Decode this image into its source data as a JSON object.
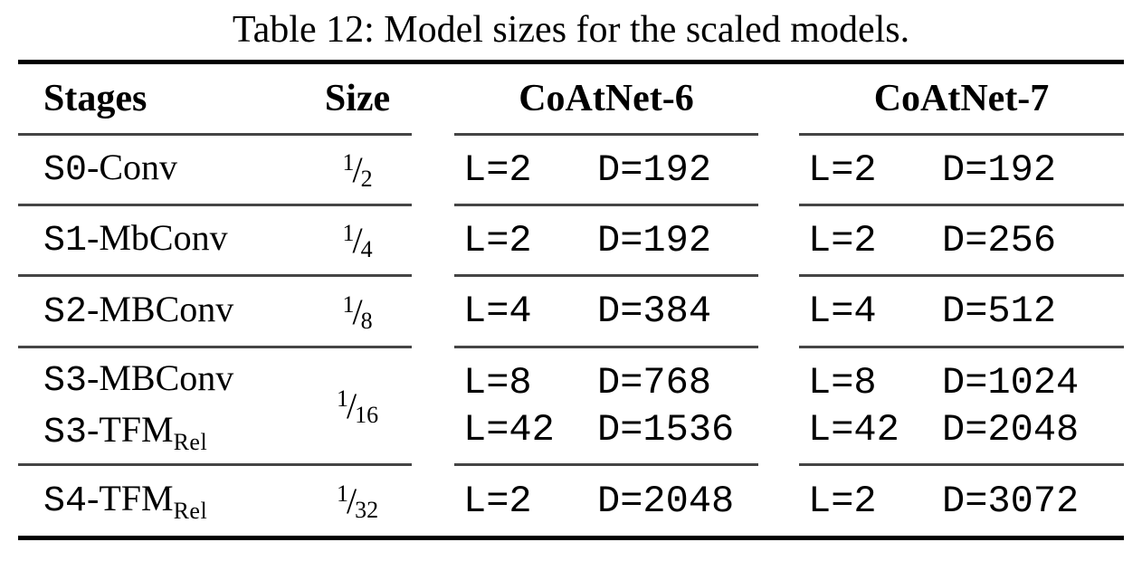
{
  "title": "Table 12: Model sizes for the scaled models.",
  "table": {
    "headers": {
      "stages": "Stages",
      "size": "Size",
      "col6": "CoAtNet-6",
      "col7": "CoAtNet-7"
    },
    "rows": [
      {
        "stage_lines": [
          {
            "prefix": "S0",
            "name": "-Conv",
            "sub": ""
          }
        ],
        "size": {
          "num": "1",
          "den": "2"
        },
        "coatnet6": {
          "l": [
            "L=2"
          ],
          "d": [
            "D=192"
          ]
        },
        "coatnet7": {
          "l": [
            "L=2"
          ],
          "d": [
            "D=192"
          ]
        }
      },
      {
        "stage_lines": [
          {
            "prefix": "S1",
            "name": "-MbConv",
            "sub": ""
          }
        ],
        "size": {
          "num": "1",
          "den": "4"
        },
        "coatnet6": {
          "l": [
            "L=2"
          ],
          "d": [
            "D=192"
          ]
        },
        "coatnet7": {
          "l": [
            "L=2"
          ],
          "d": [
            "D=256"
          ]
        }
      },
      {
        "stage_lines": [
          {
            "prefix": "S2",
            "name": "-MBConv",
            "sub": ""
          }
        ],
        "size": {
          "num": "1",
          "den": "8"
        },
        "coatnet6": {
          "l": [
            "L=4"
          ],
          "d": [
            "D=384"
          ]
        },
        "coatnet7": {
          "l": [
            "L=4"
          ],
          "d": [
            "D=512"
          ]
        }
      },
      {
        "stage_lines": [
          {
            "prefix": "S3",
            "name": "-MBConv",
            "sub": ""
          },
          {
            "prefix": "S3",
            "name": "-TFM",
            "sub": "Rel"
          }
        ],
        "size": {
          "num": "1",
          "den": "16"
        },
        "coatnet6": {
          "l": [
            "L=8",
            "L=42"
          ],
          "d": [
            "D=768",
            "D=1536"
          ]
        },
        "coatnet7": {
          "l": [
            "L=8",
            "L=42"
          ],
          "d": [
            "D=1024",
            "D=2048"
          ]
        }
      },
      {
        "stage_lines": [
          {
            "prefix": "S4",
            "name": "-TFM",
            "sub": "Rel"
          }
        ],
        "size": {
          "num": "1",
          "den": "32"
        },
        "coatnet6": {
          "l": [
            "L=2"
          ],
          "d": [
            "D=2048"
          ]
        },
        "coatnet7": {
          "l": [
            "L=2"
          ],
          "d": [
            "D=3072"
          ]
        }
      }
    ]
  },
  "colors": {
    "background": "#ffffff",
    "text": "#000000",
    "rule_thick": "#000000",
    "rule_thin": "#454545"
  }
}
